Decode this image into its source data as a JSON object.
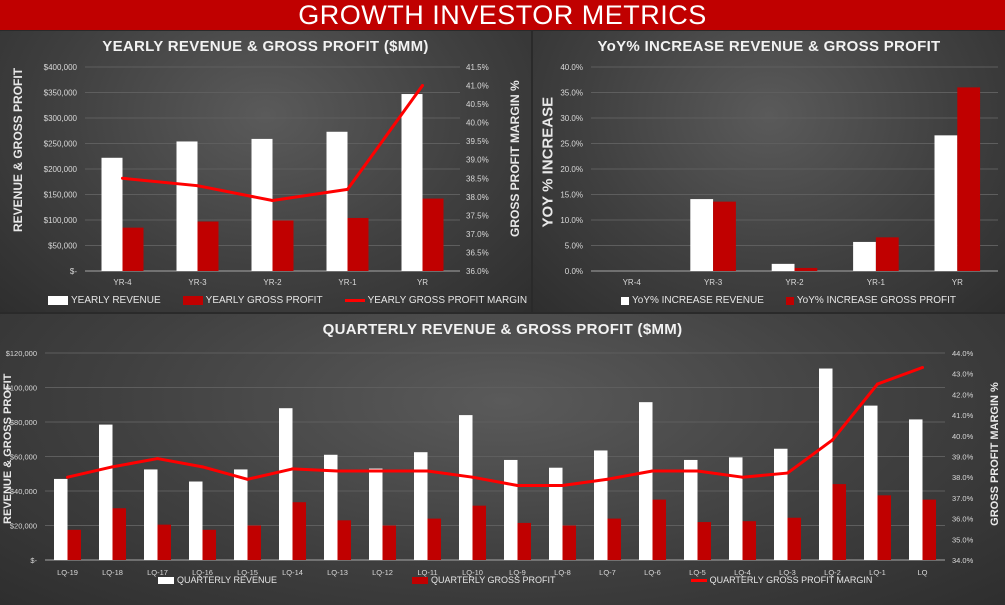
{
  "header": {
    "title": "GROWTH INVESTOR METRICS"
  },
  "colors": {
    "revenue": "#ffffff",
    "profit": "#c00000",
    "margin": "#ff0000",
    "banner": "#c00000"
  },
  "chart_data": [
    {
      "type": "bar",
      "id": "yearly",
      "title": "YEARLY REVENUE & GROSS PROFIT ($MM)",
      "ylabel": "REVENUE & GROSS PROFIT",
      "y2label": "GROSS PROFIT MARGIN %",
      "categories": [
        "YR-4",
        "YR-3",
        "YR-2",
        "YR-1",
        "YR"
      ],
      "ylim": [
        0,
        400000
      ],
      "yticks": [
        0,
        50000,
        100000,
        150000,
        200000,
        250000,
        300000,
        350000,
        400000
      ],
      "ytick_labels": [
        "$-",
        "$50,000",
        "$100,000",
        "$150,000",
        "$200,000",
        "$250,000",
        "$300,000",
        "$350,000",
        "$400,000"
      ],
      "y2lim": [
        36.0,
        41.5
      ],
      "y2ticks": [
        36.0,
        36.5,
        37.0,
        37.5,
        38.0,
        38.5,
        39.0,
        39.5,
        40.0,
        40.5,
        41.0,
        41.5
      ],
      "y2tick_labels": [
        "36.0%",
        "36.5%",
        "37.0%",
        "37.5%",
        "38.0%",
        "38.5%",
        "39.0%",
        "39.5%",
        "40.0%",
        "40.5%",
        "41.0%",
        "41.5%"
      ],
      "series": [
        {
          "name": "YEARLY REVENUE",
          "kind": "bar",
          "values": [
            222000,
            254000,
            259000,
            273000,
            347000
          ]
        },
        {
          "name": "YEARLY GROSS PROFIT",
          "kind": "bar",
          "values": [
            85000,
            97000,
            99000,
            104000,
            142000
          ]
        },
        {
          "name": "YEARLY GROSS PROFIT MARGIN",
          "kind": "line",
          "axis": "right",
          "values": [
            38.5,
            38.3,
            37.9,
            38.2,
            41.0
          ]
        }
      ],
      "grid": true,
      "legend": "bottom"
    },
    {
      "type": "bar",
      "id": "yoy",
      "title": "YoY% INCREASE REVENUE & GROSS PROFIT",
      "ylabel": "YOY % INCREASE",
      "categories": [
        "YR-4",
        "YR-3",
        "YR-2",
        "YR-1",
        "YR"
      ],
      "ylim": [
        0,
        40
      ],
      "yticks": [
        0,
        5,
        10,
        15,
        20,
        25,
        30,
        35,
        40
      ],
      "ytick_labels": [
        "0.0%",
        "5.0%",
        "10.0%",
        "15.0%",
        "20.0%",
        "25.0%",
        "30.0%",
        "35.0%",
        "40.0%"
      ],
      "series": [
        {
          "name": "YoY% INCREASE REVENUE",
          "kind": "bar",
          "values": [
            0,
            14.1,
            1.4,
            5.7,
            26.6
          ]
        },
        {
          "name": "YoY% INCREASE GROSS PROFIT",
          "kind": "bar",
          "values": [
            0,
            13.6,
            0.6,
            6.6,
            36.0
          ]
        }
      ],
      "grid": true,
      "legend": "bottom"
    },
    {
      "type": "bar",
      "id": "quarterly",
      "title": "QUARTERLY REVENUE & GROSS PROFIT ($MM)",
      "ylabel": "REVENUE & GROSS PROFIT",
      "y2label": "GROSS PROFIT MARGIN %",
      "categories": [
        "LQ-19",
        "LQ-18",
        "LQ-17",
        "LQ-16",
        "LQ-15",
        "LQ-14",
        "LQ-13",
        "LQ-12",
        "LQ-11",
        "LQ-10",
        "LQ-9",
        "LQ-8",
        "LQ-7",
        "LQ-6",
        "LQ-5",
        "LQ-4",
        "LQ-3",
        "LQ-2",
        "LQ-1",
        "LQ"
      ],
      "ylim": [
        0,
        120000
      ],
      "yticks": [
        0,
        20000,
        40000,
        60000,
        80000,
        100000,
        120000
      ],
      "ytick_labels": [
        "$-",
        "$20,000",
        "$40,000",
        "$60,000",
        "$80,000",
        "$100,000",
        "$120,000"
      ],
      "y2lim": [
        34.0,
        44.0
      ],
      "y2ticks": [
        34,
        35,
        36,
        37,
        38,
        39,
        40,
        41,
        42,
        43,
        44
      ],
      "y2tick_labels": [
        "34.0%",
        "35.0%",
        "36.0%",
        "37.0%",
        "38.0%",
        "39.0%",
        "40.0%",
        "41.0%",
        "42.0%",
        "43.0%",
        "44.0%"
      ],
      "series": [
        {
          "name": "QUARTERLY REVENUE",
          "kind": "bar",
          "values": [
            47000,
            78500,
            52500,
            45500,
            52500,
            88000,
            61000,
            53000,
            62500,
            84000,
            58000,
            53500,
            63500,
            91500,
            58000,
            59500,
            64500,
            111000,
            89500,
            81500
          ]
        },
        {
          "name": "QUARTERLY GROSS PROFIT",
          "kind": "bar",
          "values": [
            17500,
            30000,
            20500,
            17500,
            20000,
            33500,
            23000,
            20000,
            24000,
            31500,
            21500,
            20000,
            24000,
            35000,
            22000,
            22500,
            24500,
            44000,
            37500,
            35000
          ]
        },
        {
          "name": "QUARTERLY GROSS PROFIT MARGIN",
          "kind": "line",
          "axis": "right",
          "values": [
            38.0,
            38.5,
            38.9,
            38.5,
            37.9,
            38.4,
            38.3,
            38.3,
            38.3,
            38.0,
            37.6,
            37.6,
            37.9,
            38.3,
            38.3,
            38.0,
            38.2,
            39.8,
            42.5,
            43.3
          ]
        }
      ],
      "grid": true,
      "legend": "bottom"
    }
  ]
}
